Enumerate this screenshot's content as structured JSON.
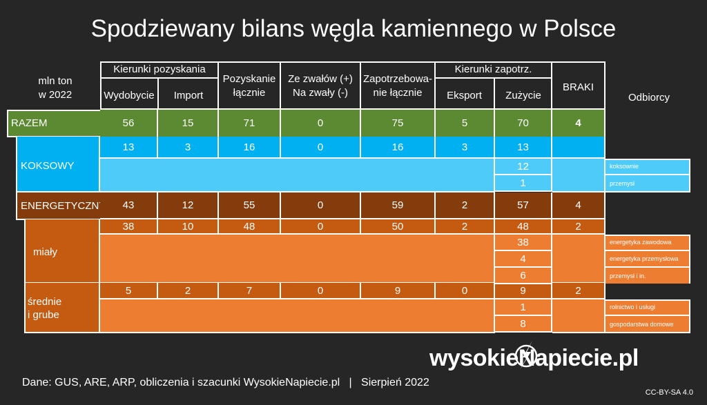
{
  "title": "Spodziewany bilans węgla kamiennego w Polsce",
  "corner_label": [
    "mln ton",
    "w 2022"
  ],
  "group_pozyskania": "Kierunki pozyskania",
  "group_zapotrz": "Kierunki zapotrz.",
  "col_wydobycie": "Wydobycie",
  "col_import": "Import",
  "col_pozyskanie": [
    "Pozyskanie",
    "łącznie"
  ],
  "col_zwaly": [
    "Ze zwałów (+)",
    "Na zwały (-)"
  ],
  "col_zapotrzebowanie": [
    "Zapotrzebowa-",
    "nie łącznie"
  ],
  "col_eksport": "Eksport",
  "col_zuzycie": "Zużycie",
  "col_braki": "BRAKI",
  "col_odbiorcy": "Odbiorcy",
  "row_razem": "RAZEM",
  "row_koksowy": "KOKSOWY",
  "row_energetyczny": "ENERGETYCZNY",
  "row_mialy": "miały",
  "row_srednie": [
    "średnie",
    "i grube"
  ],
  "footer": "Dane: GUS, ARE, ARP, obliczenia i szacunki WysokieNapiecie.pl   |   Sierpień 2022",
  "license": "CC-BY-SA 4.0",
  "logo_left": "wysokie",
  "logo_n": "N",
  "logo_right": "apiecie.pl",
  "colors": {
    "razem": "#5b8a33",
    "koksowy": "#00b0f0",
    "koksowy_light": "#4fcbfa",
    "energetyczny": "#843c0c",
    "mialy": "#c55a11",
    "mialy_light": "#ed7d31",
    "background": "#262626"
  },
  "chart_data": {
    "type": "table",
    "title": "Spodziewany bilans węgla kamiennego w Polsce",
    "unit": "mln ton w 2022",
    "columns": [
      "Wydobycie",
      "Import",
      "Pozyskanie łącznie",
      "Ze zwałów (+) Na zwały (-)",
      "Zapotrzebowanie łącznie",
      "Eksport",
      "Zużycie",
      "BRAKI"
    ],
    "rows": [
      {
        "name": "RAZEM",
        "values": [
          "56",
          "15",
          "71",
          "0",
          "75",
          "5",
          "70",
          "4"
        ]
      },
      {
        "name": "KOKSOWY",
        "values": [
          "13",
          "3",
          "16",
          "0",
          "16",
          "3",
          "13",
          ""
        ]
      },
      {
        "name": "ENERGETYCZNY",
        "values": [
          "43",
          "12",
          "55",
          "0",
          "59",
          "2",
          "57",
          "4"
        ]
      },
      {
        "name": "miały",
        "values": [
          "38",
          "10",
          "48",
          "0",
          "50",
          "2",
          "48",
          "2"
        ]
      },
      {
        "name": "średnie i grube",
        "values": [
          "5",
          "2",
          "7",
          "0",
          "9",
          "0",
          "9",
          "2"
        ]
      }
    ],
    "odbiorcy": [
      {
        "group": "KOKSOWY",
        "items": [
          {
            "name": "koksownie",
            "value": "12"
          },
          {
            "name": "przemysł",
            "value": "1"
          }
        ]
      },
      {
        "group": "miały",
        "items": [
          {
            "name": "energetyka zawodowa",
            "value": "38"
          },
          {
            "name": "energetyka przemysłowa",
            "value": "4"
          },
          {
            "name": "przemysł i in.",
            "value": "6"
          }
        ]
      },
      {
        "group": "średnie i grube",
        "items": [
          {
            "name": "rolnictwo i usługi",
            "value": "1"
          },
          {
            "name": "gospodarstwa domowe",
            "value": "8"
          }
        ]
      }
    ]
  }
}
